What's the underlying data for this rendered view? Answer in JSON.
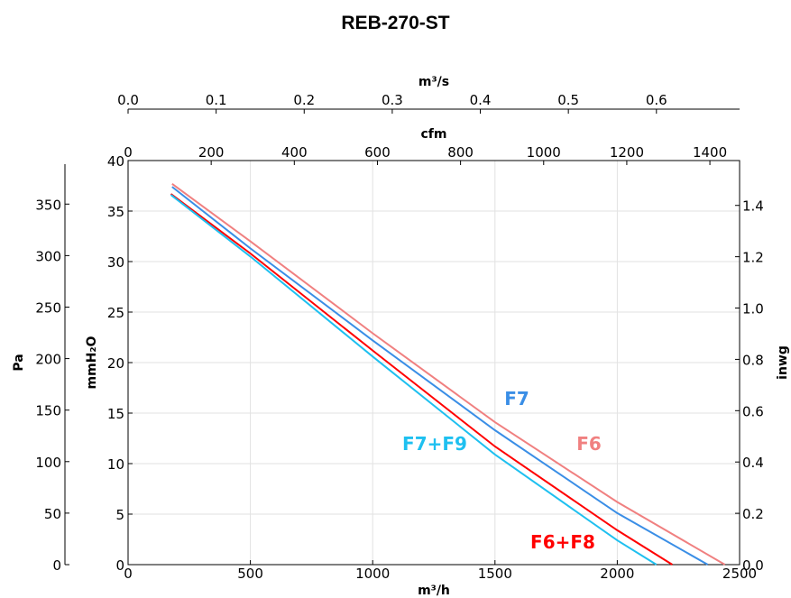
{
  "chart_data": {
    "type": "line",
    "title": "REB-270-ST",
    "xlabel": "m³/h",
    "ylabel": "mmH₂O",
    "xlim": [
      0,
      2500
    ],
    "ylim": [
      0,
      40
    ],
    "grid": true,
    "x_ticks": [
      "0",
      "500",
      "1000",
      "1500",
      "2000",
      "2500"
    ],
    "y_ticks": [
      "0",
      "5",
      "10",
      "15",
      "20",
      "25",
      "30",
      "35",
      "40"
    ],
    "secondary_axes": {
      "top_outer": {
        "label": "m³/s",
        "ticks": [
          "0.0",
          "0.1",
          "0.2",
          "0.3",
          "0.4",
          "0.5",
          "0.6"
        ]
      },
      "top_inner": {
        "label": "cfm",
        "ticks": [
          "0",
          "200",
          "400",
          "600",
          "800",
          "1000",
          "1200",
          "1400"
        ]
      },
      "left_outer": {
        "label": "Pa",
        "ticks": [
          "0",
          "50",
          "100",
          "150",
          "200",
          "250",
          "300",
          "350"
        ]
      },
      "right": {
        "label": "inwg",
        "ticks": [
          "0.0",
          "0.2",
          "0.4",
          "0.6",
          "0.8",
          "1.0",
          "1.2",
          "1.4"
        ]
      }
    },
    "series": [
      {
        "name": "F6",
        "color": "#f08080",
        "x": [
          180,
          500,
          1000,
          1500,
          2000,
          2440
        ],
        "y": [
          37.7,
          32.0,
          22.9,
          14.1,
          6.2,
          0
        ]
      },
      {
        "name": "F7",
        "color": "#3a8ee6",
        "x": [
          180,
          500,
          1000,
          1500,
          2000,
          2370
        ],
        "y": [
          37.4,
          31.3,
          22.2,
          13.3,
          5.1,
          0
        ]
      },
      {
        "name": "F6+F8",
        "color": "#ff0000",
        "x": [
          175,
          500,
          1000,
          1500,
          2000,
          2225
        ],
        "y": [
          36.7,
          30.8,
          21.2,
          11.7,
          3.4,
          0
        ]
      },
      {
        "name": "F7+F9",
        "color": "#1ec0f0",
        "x": [
          175,
          500,
          1000,
          1500,
          2000,
          2160
        ],
        "y": [
          36.6,
          30.5,
          20.6,
          10.9,
          2.4,
          0
        ]
      }
    ]
  }
}
